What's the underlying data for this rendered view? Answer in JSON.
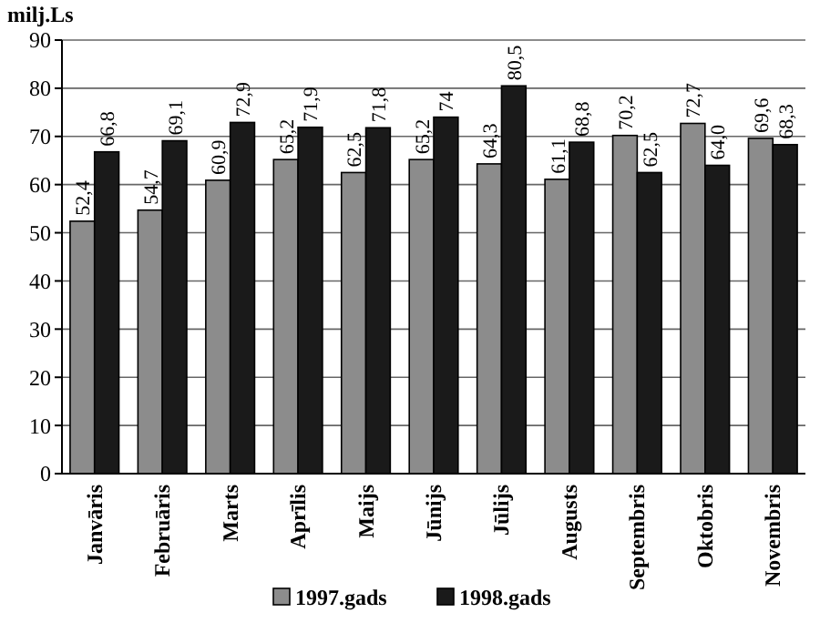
{
  "chart_data": {
    "type": "bar",
    "ylabel": "milj.Ls",
    "categories": [
      "Janvāris",
      "Februāris",
      "Marts",
      "Aprīlis",
      "Maijs",
      "Jūnijs",
      "Jūlijs",
      "Augusts",
      "Septembris",
      "Oktobris",
      "Novembris"
    ],
    "series": [
      {
        "name": "1997.gads",
        "color": "#8c8c8c",
        "values": [
          52.4,
          54.7,
          60.9,
          65.2,
          62.5,
          65.2,
          64.3,
          61.1,
          70.2,
          72.7,
          69.6
        ],
        "value_labels": [
          "52,4",
          "54,7",
          "60,9",
          "65,2",
          "62,5",
          "65,2",
          "64,3",
          "61,1",
          "70,2",
          "72,7",
          "69,6"
        ]
      },
      {
        "name": "1998.gads",
        "color": "#1a1a1a",
        "values": [
          66.8,
          69.1,
          72.9,
          71.9,
          71.8,
          74,
          80.5,
          68.8,
          62.5,
          64.0,
          68.3
        ],
        "value_labels": [
          "66,8",
          "69,1",
          "72,9",
          "71,9",
          "71,8",
          "74",
          "80,5",
          "68,8",
          "62,5",
          "64,0",
          "68,3"
        ]
      }
    ],
    "ylim": [
      0,
      90
    ],
    "yticks": [
      0,
      10,
      20,
      30,
      40,
      50,
      60,
      70,
      80,
      90
    ],
    "grid": "y",
    "legend": "bottom"
  }
}
